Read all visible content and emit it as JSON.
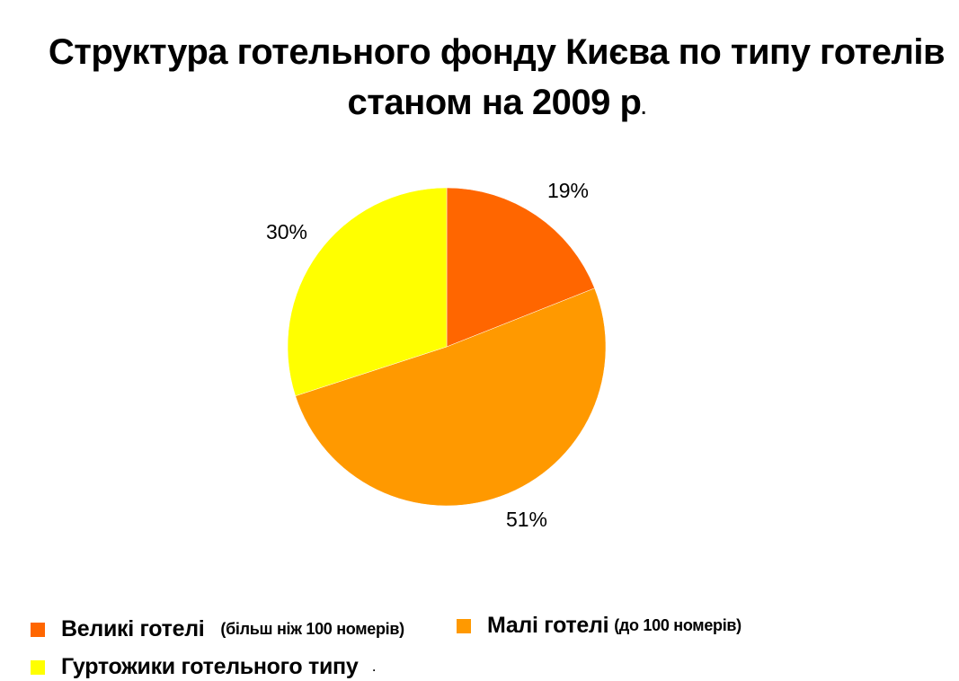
{
  "title": {
    "line1": "Структура готельного фонду Києва по типу готелів",
    "line2": "станом на 2009 р",
    "line2_suffix": "."
  },
  "chart_data": {
    "type": "pie",
    "title": "Структура готельного фонду Києва по типу готелів станом на 2009 р.",
    "slices": [
      {
        "name": "Великі готелі (більш ніж 100 номерів)",
        "value": 19,
        "label": "19%",
        "color": "#FF6600"
      },
      {
        "name": "Малі готелі (до 100 номерів)",
        "value": 51,
        "label": "51%",
        "color": "#FF9900"
      },
      {
        "name": "Гуртожики готельного типу",
        "value": 30,
        "label": "30%",
        "color": "#FFFF00"
      }
    ],
    "start_angle": "12 o'clock",
    "direction": "clockwise",
    "legend_position": "bottom"
  },
  "legend": [
    {
      "main": "Великі готелі",
      "note": "(більш ніж 100 номерів)",
      "color": "#FF6600"
    },
    {
      "main": "Малі готелі",
      "note": "(до 100 номерів)",
      "color": "#FF9900"
    },
    {
      "main": "Гуртожики готельного типу",
      "note": ".",
      "color": "#FFFF00"
    }
  ]
}
